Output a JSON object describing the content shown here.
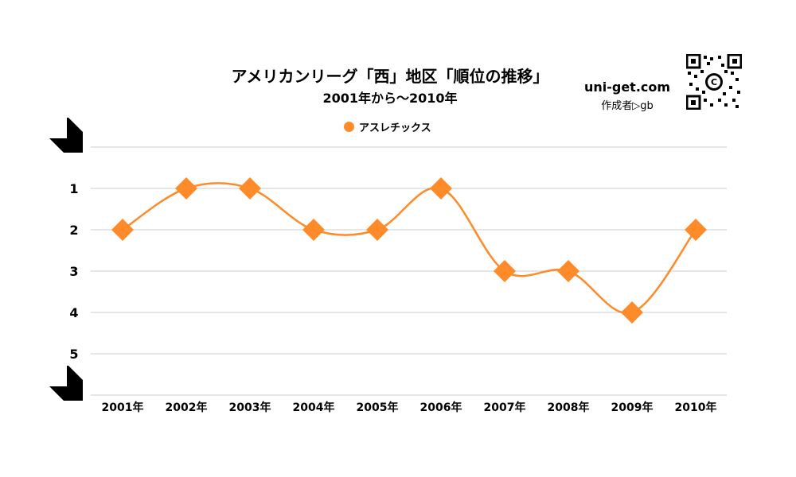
{
  "header": {
    "title": "アメリカンリーグ「西」地区「順位の推移」",
    "subtitle": "2001年から～2010年",
    "brand": "uni-get.com",
    "author": "作成者▷gb"
  },
  "colors": {
    "series": "#fd8b2a",
    "grid": "#cccccc",
    "axis": "#000000"
  },
  "chart_data": {
    "type": "line",
    "title": "アメリカンリーグ「西」地区「順位の推移」",
    "subtitle": "2001年から～2010年",
    "categories": [
      "2001年",
      "2002年",
      "2003年",
      "2004年",
      "2005年",
      "2006年",
      "2007年",
      "2008年",
      "2009年",
      "2010年"
    ],
    "series": [
      {
        "name": "アスレチックス",
        "values": [
          2,
          1,
          1,
          2,
          2,
          1,
          3,
          3,
          4,
          2
        ],
        "marker": "diamond",
        "smooth": true
      }
    ],
    "yticks": [
      1,
      2,
      3,
      4,
      5
    ],
    "ylim": [
      0,
      6
    ],
    "y_inverted": true,
    "grid": true,
    "legend": "top-center"
  }
}
